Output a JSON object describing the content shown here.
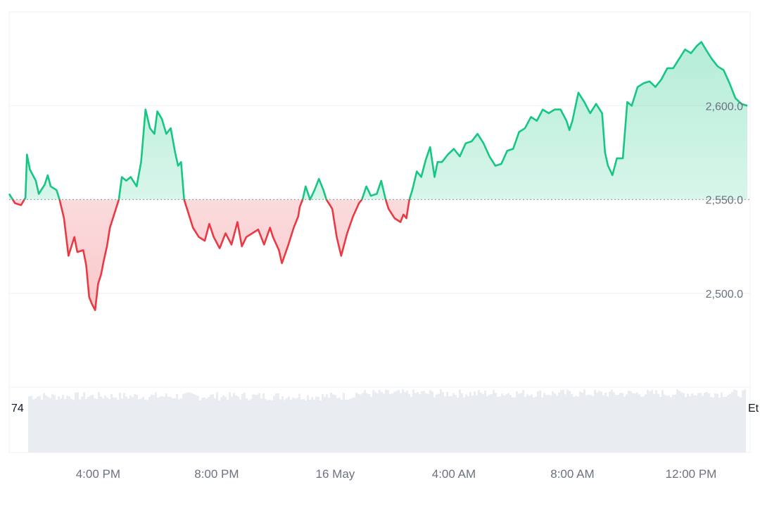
{
  "chart_data": {
    "type": "area",
    "title": "",
    "xlabel": "",
    "ylabel": "",
    "baseline": 2550,
    "ylim": [
      2450,
      2650
    ],
    "y_ticks": [
      {
        "value": 2600,
        "label": "2,600.0"
      },
      {
        "value": 2550,
        "label": "2,550.0"
      },
      {
        "value": 2500,
        "label": "2,500.0"
      }
    ],
    "x_ticks": [
      {
        "hour": 16,
        "label": "4:00 PM"
      },
      {
        "hour": 20,
        "label": "8:00 PM"
      },
      {
        "hour": 24,
        "label": "16 May"
      },
      {
        "hour": 28,
        "label": "4:00 AM"
      },
      {
        "hour": 32,
        "label": "8:00 AM"
      },
      {
        "hour": 36,
        "label": "12:00 PM"
      }
    ],
    "x_range_hours": [
      13.0,
      37.9
    ],
    "series": [
      {
        "values": [
          [
            13.0,
            2553
          ],
          [
            13.2,
            2548
          ],
          [
            13.4,
            2547
          ],
          [
            13.55,
            2551
          ],
          [
            13.6,
            2574
          ],
          [
            13.7,
            2566
          ],
          [
            13.9,
            2560
          ],
          [
            14.0,
            2553
          ],
          [
            14.2,
            2558
          ],
          [
            14.3,
            2563
          ],
          [
            14.4,
            2557
          ],
          [
            14.6,
            2555
          ],
          [
            14.7,
            2550
          ],
          [
            14.85,
            2540
          ],
          [
            15.0,
            2520
          ],
          [
            15.2,
            2530
          ],
          [
            15.3,
            2522
          ],
          [
            15.5,
            2523
          ],
          [
            15.6,
            2515
          ],
          [
            15.7,
            2498
          ],
          [
            15.8,
            2494
          ],
          [
            15.9,
            2491
          ],
          [
            16.0,
            2505
          ],
          [
            16.1,
            2510
          ],
          [
            16.2,
            2518
          ],
          [
            16.3,
            2525
          ],
          [
            16.4,
            2535
          ],
          [
            16.6,
            2545
          ],
          [
            16.7,
            2550
          ],
          [
            16.8,
            2562
          ],
          [
            16.95,
            2560
          ],
          [
            17.1,
            2562
          ],
          [
            17.3,
            2557
          ],
          [
            17.45,
            2570
          ],
          [
            17.6,
            2598
          ],
          [
            17.75,
            2588
          ],
          [
            17.9,
            2585
          ],
          [
            18.0,
            2597
          ],
          [
            18.15,
            2593
          ],
          [
            18.3,
            2585
          ],
          [
            18.45,
            2588
          ],
          [
            18.6,
            2575
          ],
          [
            18.7,
            2568
          ],
          [
            18.8,
            2570
          ],
          [
            18.9,
            2550
          ],
          [
            19.0,
            2545
          ],
          [
            19.2,
            2535
          ],
          [
            19.4,
            2530
          ],
          [
            19.6,
            2528
          ],
          [
            19.75,
            2537
          ],
          [
            19.9,
            2530
          ],
          [
            20.1,
            2524
          ],
          [
            20.3,
            2532
          ],
          [
            20.5,
            2526
          ],
          [
            20.7,
            2538
          ],
          [
            20.85,
            2525
          ],
          [
            21.0,
            2530
          ],
          [
            21.2,
            2532
          ],
          [
            21.4,
            2534
          ],
          [
            21.6,
            2526
          ],
          [
            21.8,
            2535
          ],
          [
            21.9,
            2530
          ],
          [
            22.1,
            2523
          ],
          [
            22.2,
            2516
          ],
          [
            22.4,
            2525
          ],
          [
            22.6,
            2535
          ],
          [
            22.75,
            2541
          ],
          [
            22.8,
            2546
          ],
          [
            22.9,
            2550
          ],
          [
            23.0,
            2557
          ],
          [
            23.15,
            2550
          ],
          [
            23.3,
            2555
          ],
          [
            23.45,
            2561
          ],
          [
            23.6,
            2555
          ],
          [
            23.7,
            2550
          ],
          [
            23.9,
            2545
          ],
          [
            24.05,
            2530
          ],
          [
            24.2,
            2520
          ],
          [
            24.4,
            2532
          ],
          [
            24.6,
            2541
          ],
          [
            24.8,
            2548
          ],
          [
            24.9,
            2550
          ],
          [
            25.05,
            2557
          ],
          [
            25.2,
            2552
          ],
          [
            25.4,
            2553
          ],
          [
            25.55,
            2560
          ],
          [
            25.7,
            2550
          ],
          [
            25.8,
            2545
          ],
          [
            26.0,
            2540
          ],
          [
            26.2,
            2538
          ],
          [
            26.3,
            2542
          ],
          [
            26.4,
            2540
          ],
          [
            26.5,
            2550
          ],
          [
            26.6,
            2555
          ],
          [
            26.75,
            2565
          ],
          [
            26.9,
            2562
          ],
          [
            27.05,
            2571
          ],
          [
            27.2,
            2578
          ],
          [
            27.35,
            2562
          ],
          [
            27.45,
            2570
          ],
          [
            27.6,
            2570
          ],
          [
            27.8,
            2574
          ],
          [
            28.0,
            2577
          ],
          [
            28.2,
            2573
          ],
          [
            28.4,
            2580
          ],
          [
            28.6,
            2581
          ],
          [
            28.8,
            2585
          ],
          [
            29.0,
            2580
          ],
          [
            29.2,
            2573
          ],
          [
            29.4,
            2568
          ],
          [
            29.6,
            2569
          ],
          [
            29.8,
            2576
          ],
          [
            30.0,
            2577
          ],
          [
            30.2,
            2586
          ],
          [
            30.4,
            2588
          ],
          [
            30.6,
            2594
          ],
          [
            30.8,
            2592
          ],
          [
            31.0,
            2598
          ],
          [
            31.2,
            2596
          ],
          [
            31.4,
            2598
          ],
          [
            31.6,
            2598
          ],
          [
            31.8,
            2592
          ],
          [
            31.9,
            2587
          ],
          [
            32.0,
            2592
          ],
          [
            32.2,
            2607
          ],
          [
            32.4,
            2602
          ],
          [
            32.6,
            2596
          ],
          [
            32.8,
            2601
          ],
          [
            33.0,
            2596
          ],
          [
            33.1,
            2575
          ],
          [
            33.2,
            2568
          ],
          [
            33.35,
            2563
          ],
          [
            33.5,
            2572
          ],
          [
            33.7,
            2572
          ],
          [
            33.85,
            2602
          ],
          [
            34.0,
            2600
          ],
          [
            34.2,
            2610
          ],
          [
            34.4,
            2612
          ],
          [
            34.6,
            2613
          ],
          [
            34.8,
            2610
          ],
          [
            35.0,
            2614
          ],
          [
            35.2,
            2620
          ],
          [
            35.4,
            2620
          ],
          [
            35.6,
            2625
          ],
          [
            35.8,
            2630
          ],
          [
            36.0,
            2628
          ],
          [
            36.2,
            2632
          ],
          [
            36.35,
            2634
          ],
          [
            36.5,
            2630
          ],
          [
            36.7,
            2625
          ],
          [
            36.9,
            2621
          ],
          [
            37.1,
            2619
          ],
          [
            37.3,
            2612
          ],
          [
            37.5,
            2604
          ],
          [
            37.7,
            2601
          ],
          [
            37.9,
            2600
          ]
        ]
      }
    ],
    "colors": {
      "up_line": "#16c784",
      "down_line": "#ea3943",
      "up_fill": "#16c784",
      "down_fill": "#ea3943",
      "grid": "#eef0f3",
      "baseline": "#9ca3af",
      "volume": "#e9edf2"
    },
    "volume_label_left": "74",
    "volume_label_right": "Et"
  }
}
